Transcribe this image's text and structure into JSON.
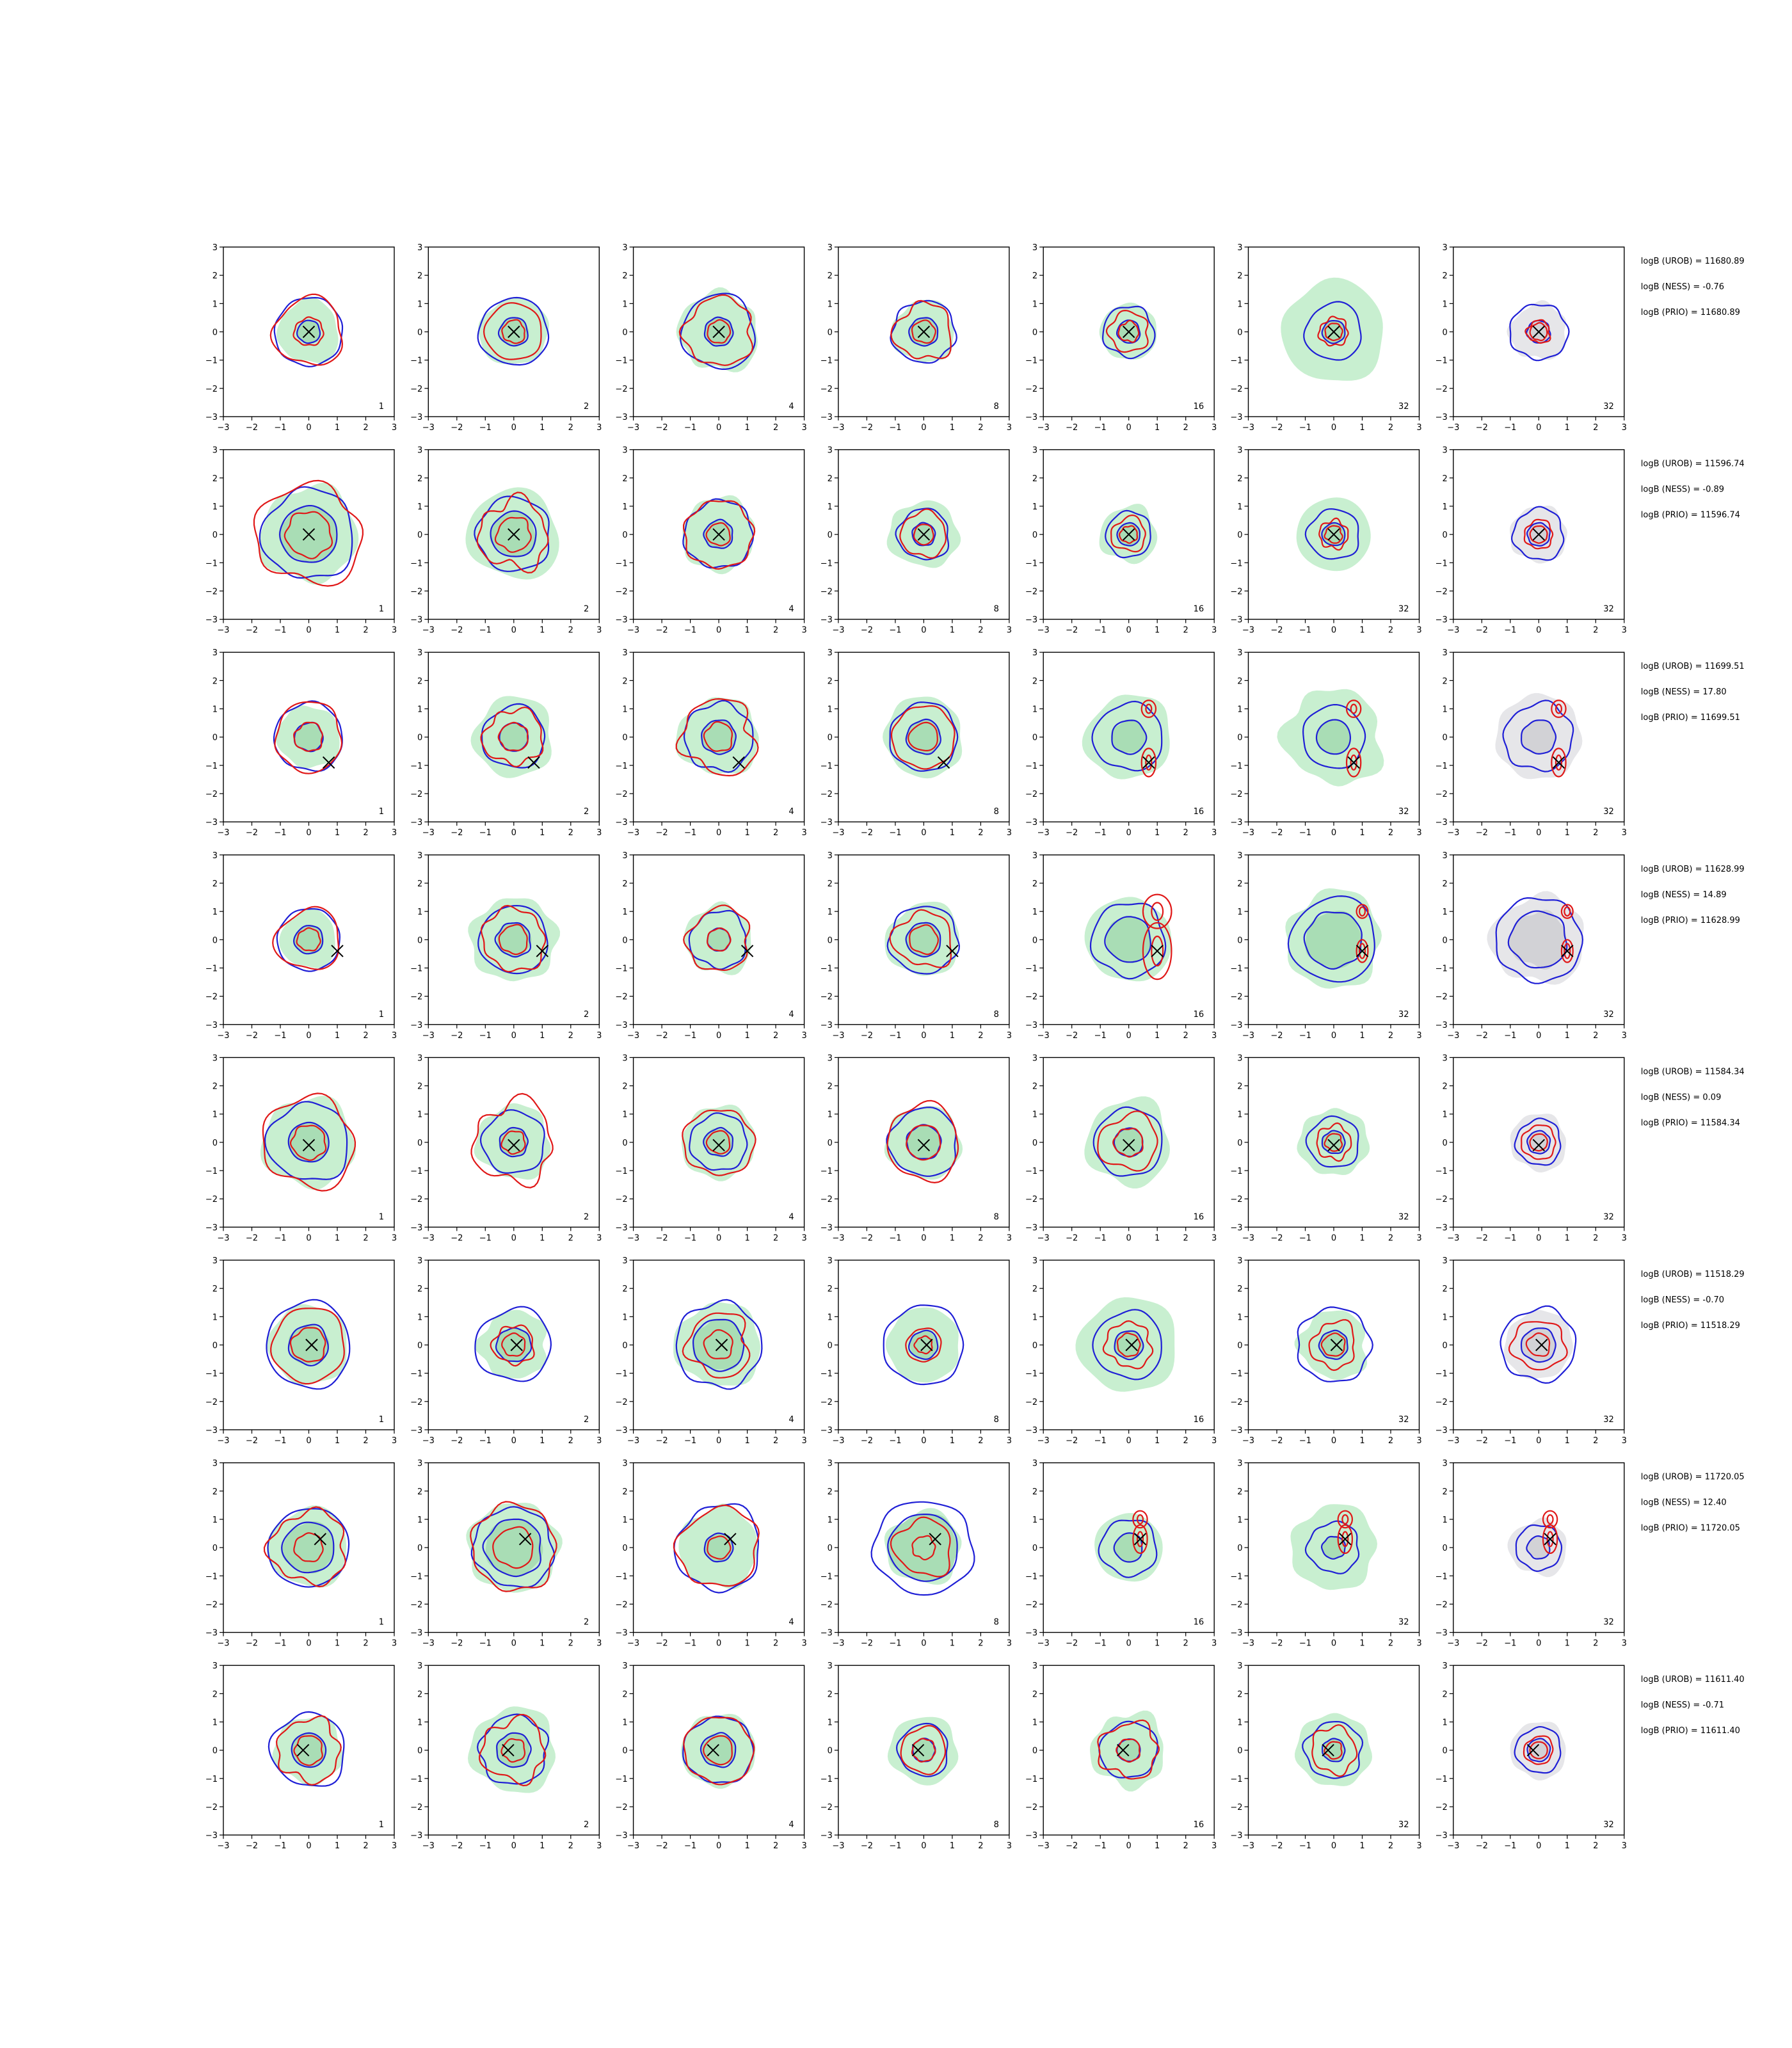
{
  "chart_data": {
    "type": "contour-grid",
    "xlim": [
      -3,
      3
    ],
    "ylim": [
      -3,
      3
    ],
    "ticks": [
      "−3",
      "−2",
      "−1",
      "0",
      "1",
      "2",
      "3"
    ],
    "grid": false,
    "columns": [
      {
        "label": "1"
      },
      {
        "label": "2"
      },
      {
        "label": "4"
      },
      {
        "label": "8"
      },
      {
        "label": "16"
      },
      {
        "label": "32"
      },
      {
        "label": "32"
      }
    ],
    "colors": {
      "fill_green": "#c8efd0",
      "fill_green_dark": "#a9ddb5",
      "fill_gray": "#e6e6e9",
      "fill_gray_dark": "#d2d2d6",
      "blue": "#1f1fd6",
      "red": "#e01818",
      "marker": "#000000"
    },
    "rows": [
      {
        "marker": [
          0.0,
          0.0
        ],
        "split": false,
        "annotations": [
          "logB (UROB) = 11680.89",
          "logB (NESS) = -0.76",
          "logB (PRIO) = 11680.89"
        ],
        "panels": [
          {
            "fill": 1.1,
            "blue": [
              1.2,
              0.4
            ],
            "red": [
              1.2,
              0.5
            ]
          },
          {
            "fill": 1.2,
            "blue": [
              1.2,
              0.5
            ],
            "red": [
              1.0,
              0.4
            ]
          },
          {
            "fill": 1.4,
            "blue": [
              1.3,
              0.5
            ],
            "red": [
              1.2,
              0.4
            ]
          },
          {
            "fill": 1.1,
            "blue": [
              1.1,
              0.5
            ],
            "red": [
              1.0,
              0.4
            ]
          },
          {
            "fill": 1.0,
            "blue": [
              0.9,
              0.4
            ],
            "red": [
              0.7,
              0.35
            ]
          },
          {
            "fill": 1.8,
            "blue": [
              1.0,
              0.4
            ],
            "red": [
              0.5,
              0.3
            ]
          },
          {
            "fill": 1.0,
            "blue": [
              1.0,
              0.4
            ],
            "red": [
              0.4,
              0.3
            ]
          }
        ]
      },
      {
        "marker": [
          0.0,
          0.0
        ],
        "split": false,
        "annotations": [
          "logB (UROB) = 11596.74",
          "logB (NESS) = -0.89",
          "logB (PRIO) = 11596.74"
        ],
        "panels": [
          {
            "fill": 1.7,
            "blue": [
              1.6,
              1.0
            ],
            "red": [
              1.8,
              0.8
            ]
          },
          {
            "fill": 1.6,
            "blue": [
              1.3,
              0.8
            ],
            "red": [
              1.2,
              0.6
            ]
          },
          {
            "fill": 1.3,
            "blue": [
              1.2,
              0.5
            ],
            "red": [
              1.2,
              0.4
            ]
          },
          {
            "fill": 1.2,
            "blue": [
              0.9,
              0.4
            ],
            "red": [
              0.8,
              0.35
            ]
          },
          {
            "fill": 1.0,
            "blue": [
              0.8,
              0.4
            ],
            "red": [
              0.6,
              0.3
            ]
          },
          {
            "fill": 1.3,
            "blue": [
              0.9,
              0.4
            ],
            "red": [
              0.5,
              0.3
            ]
          },
          {
            "fill": 1.0,
            "blue": [
              0.9,
              0.4
            ],
            "red": [
              0.5,
              0.3
            ]
          }
        ]
      },
      {
        "marker": [
          0.7,
          -0.9
        ],
        "split": true,
        "annotations": [
          "logB (UROB) = 11699.51",
          "logB (NESS) = 17.80",
          "logB (PRIO) = 11699.51"
        ],
        "panels": [
          {
            "fill": 1.1,
            "blue": [
              1.2,
              0.5
            ],
            "red": [
              1.2,
              0.5
            ]
          },
          {
            "fill": 1.4,
            "blue": [
              1.1,
              0.5
            ],
            "red": [
              1.0,
              0.5
            ]
          },
          {
            "fill": 1.4,
            "blue": [
              1.2,
              0.6
            ],
            "red": [
              1.3,
              0.5
            ]
          },
          {
            "fill": 1.4,
            "blue": [
              1.2,
              0.6
            ],
            "red": [
              1.1,
              0.5
            ]
          },
          {
            "fill": 1.5,
            "blue": [
              1.2,
              0.6
            ],
            "red": [
              0.5,
              0.2
            ]
          },
          {
            "fill": 1.7,
            "blue": [
              1.1,
              0.6
            ],
            "red": [
              0.5,
              0.2
            ]
          },
          {
            "fill": 1.5,
            "blue": [
              1.2,
              0.6
            ],
            "red": [
              0.5,
              0.2
            ]
          }
        ]
      },
      {
        "marker": [
          1.0,
          -0.4
        ],
        "split": true,
        "annotations": [
          "logB (UROB) = 11628.99",
          "logB (NESS) = 14.89",
          "logB (PRIO) = 11628.99"
        ],
        "panels": [
          {
            "fill": 1.0,
            "blue": [
              1.1,
              0.5
            ],
            "red": [
              1.1,
              0.4
            ]
          },
          {
            "fill": 1.5,
            "blue": [
              1.2,
              0.6
            ],
            "red": [
              1.1,
              0.5
            ]
          },
          {
            "fill": 1.2,
            "blue": [
              1.0,
              0.4
            ],
            "red": [
              1.1,
              0.4
            ]
          },
          {
            "fill": 1.3,
            "blue": [
              1.2,
              0.6
            ],
            "red": [
              1.0,
              0.5
            ]
          },
          {
            "fill": 1.5,
            "blue": [
              1.3,
              0.8
            ],
            "red": [
              1.0,
              0.4
            ]
          },
          {
            "fill": 1.7,
            "blue": [
              1.5,
              1.0
            ],
            "red": [
              0.4,
              0.2
            ]
          },
          {
            "fill": 1.6,
            "blue": [
              1.5,
              1.0
            ],
            "red": [
              0.4,
              0.2
            ]
          }
        ]
      },
      {
        "marker": [
          0.0,
          -0.1
        ],
        "split": false,
        "annotations": [
          "logB (UROB) = 11584.34",
          "logB (NESS) = 0.09",
          "logB (PRIO) = 11584.34"
        ],
        "panels": [
          {
            "fill": 1.6,
            "blue": [
              1.4,
              0.7
            ],
            "red": [
              1.6,
              0.6
            ]
          },
          {
            "fill": 1.3,
            "blue": [
              1.1,
              0.5
            ],
            "red": [
              1.4,
              0.4
            ]
          },
          {
            "fill": 1.3,
            "blue": [
              1.0,
              0.5
            ],
            "red": [
              1.2,
              0.4
            ]
          },
          {
            "fill": 1.3,
            "blue": [
              1.2,
              0.6
            ],
            "red": [
              1.3,
              0.6
            ]
          },
          {
            "fill": 1.5,
            "blue": [
              1.2,
              0.5
            ],
            "red": [
              1.0,
              0.5
            ]
          },
          {
            "fill": 1.2,
            "blue": [
              0.9,
              0.4
            ],
            "red": [
              0.6,
              0.3
            ]
          },
          {
            "fill": 1.0,
            "blue": [
              0.8,
              0.4
            ],
            "red": [
              0.6,
              0.3
            ]
          }
        ]
      },
      {
        "marker": [
          0.1,
          0.0
        ],
        "split": false,
        "annotations": [
          "logB (UROB) = 11518.29",
          "logB (NESS) = -0.70",
          "logB (PRIO) = 11518.29"
        ],
        "panels": [
          {
            "fill": 1.4,
            "blue": [
              1.5,
              0.7
            ],
            "red": [
              1.3,
              0.6
            ]
          },
          {
            "fill": 1.2,
            "blue": [
              1.3,
              0.6
            ],
            "red": [
              0.7,
              0.4
            ]
          },
          {
            "fill": 1.5,
            "blue": [
              1.5,
              0.9
            ],
            "red": [
              1.1,
              0.5
            ]
          },
          {
            "fill": 1.3,
            "blue": [
              1.4,
              0.5
            ],
            "red": [
              0.6,
              0.3
            ]
          },
          {
            "fill": 1.7,
            "blue": [
              1.2,
              0.5
            ],
            "red": [
              0.8,
              0.4
            ]
          },
          {
            "fill": 1.2,
            "blue": [
              1.3,
              0.5
            ],
            "red": [
              0.8,
              0.4
            ]
          },
          {
            "fill": 1.2,
            "blue": [
              1.3,
              0.6
            ],
            "red": [
              0.9,
              0.4
            ]
          }
        ]
      },
      {
        "marker": [
          0.4,
          0.3
        ],
        "split": true,
        "annotations": [
          "logB (UROB) = 11720.05",
          "logB (NESS) = 12.40",
          "logB (PRIO) = 11720.05"
        ],
        "panels": [
          {
            "fill": 1.4,
            "blue": [
              1.4,
              0.9
            ],
            "red": [
              1.3,
              0.5
            ]
          },
          {
            "fill": 1.6,
            "blue": [
              1.4,
              1.0
            ],
            "red": [
              1.5,
              0.7
            ]
          },
          {
            "fill": 1.4,
            "blue": [
              1.5,
              0.5
            ],
            "red": [
              1.4,
              0.4
            ]
          },
          {
            "fill": 1.3,
            "blue": [
              1.7,
              1.2
            ],
            "red": [
              1.0,
              0.4
            ]
          },
          {
            "fill": 1.2,
            "blue": [
              1.0,
              0.5
            ],
            "red": [
              0.5,
              0.2
            ]
          },
          {
            "fill": 1.5,
            "blue": [
              0.9,
              0.4
            ],
            "red": [
              0.5,
              0.2
            ]
          },
          {
            "fill": 1.0,
            "blue": [
              0.8,
              0.4
            ],
            "red": [
              0.5,
              0.2
            ]
          }
        ]
      },
      {
        "marker": [
          -0.2,
          0.0
        ],
        "split": false,
        "annotations": [
          "logB (UROB) = 11611.40",
          "logB (NESS) = -0.71",
          "logB (PRIO) = 11611.40"
        ],
        "panels": [
          {
            "fill": 1.2,
            "blue": [
              1.3,
              0.6
            ],
            "red": [
              1.1,
              0.5
            ]
          },
          {
            "fill": 1.5,
            "blue": [
              1.2,
              0.6
            ],
            "red": [
              1.1,
              0.4
            ]
          },
          {
            "fill": 1.3,
            "blue": [
              1.2,
              0.6
            ],
            "red": [
              1.2,
              0.5
            ]
          },
          {
            "fill": 1.2,
            "blue": [
              0.9,
              0.4
            ],
            "red": [
              0.8,
              0.4
            ]
          },
          {
            "fill": 1.3,
            "blue": [
              1.0,
              0.4
            ],
            "red": [
              1.0,
              0.4
            ]
          },
          {
            "fill": 1.3,
            "blue": [
              1.0,
              0.4
            ],
            "red": [
              0.8,
              0.3
            ]
          },
          {
            "fill": 1.0,
            "blue": [
              0.8,
              0.4
            ],
            "red": [
              0.5,
              0.3
            ]
          }
        ]
      }
    ]
  }
}
